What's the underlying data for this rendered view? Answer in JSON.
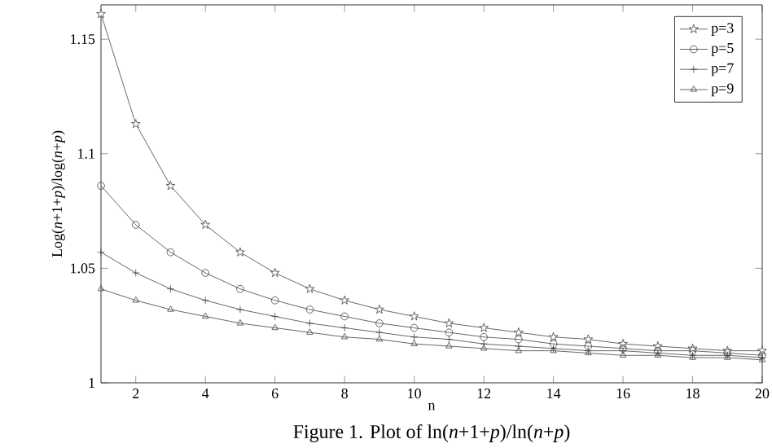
{
  "chart_data": {
    "type": "line",
    "xlabel": "n",
    "ylabel": "Log(*n*+1+*p*)/log(*n*+*p*)",
    "x": [
      1,
      2,
      3,
      4,
      5,
      6,
      7,
      8,
      9,
      10,
      11,
      12,
      13,
      14,
      15,
      16,
      17,
      18,
      19,
      20
    ],
    "series": [
      {
        "name": "p=3",
        "color": "#404040",
        "marker": "star",
        "values": [
          1.161,
          1.113,
          1.086,
          1.069,
          1.057,
          1.048,
          1.041,
          1.036,
          1.032,
          1.029,
          1.026,
          1.024,
          1.022,
          1.02,
          1.019,
          1.017,
          1.016,
          1.015,
          1.014,
          1.014
        ]
      },
      {
        "name": "p=5",
        "color": "#404040",
        "marker": "circle",
        "values": [
          1.086,
          1.069,
          1.057,
          1.048,
          1.041,
          1.036,
          1.032,
          1.029,
          1.026,
          1.024,
          1.022,
          1.02,
          1.019,
          1.017,
          1.016,
          1.015,
          1.014,
          1.014,
          1.013,
          1.012
        ]
      },
      {
        "name": "p=7",
        "color": "#404040",
        "marker": "cross",
        "values": [
          1.057,
          1.048,
          1.041,
          1.036,
          1.032,
          1.029,
          1.026,
          1.024,
          1.022,
          1.02,
          1.019,
          1.017,
          1.016,
          1.015,
          1.014,
          1.014,
          1.013,
          1.012,
          1.012,
          1.011
        ]
      },
      {
        "name": "p=9",
        "color": "#404040",
        "marker": "triangle",
        "values": [
          1.041,
          1.036,
          1.032,
          1.029,
          1.026,
          1.024,
          1.022,
          1.02,
          1.019,
          1.017,
          1.016,
          1.015,
          1.014,
          1.014,
          1.013,
          1.012,
          1.012,
          1.011,
          1.011,
          1.01
        ]
      }
    ],
    "xlim": [
      1,
      20
    ],
    "ylim": [
      1,
      1.165
    ],
    "xticks": [
      2,
      4,
      6,
      8,
      10,
      12,
      14,
      16,
      18,
      20
    ],
    "yticks": [
      1,
      1.05,
      1.1,
      1.15
    ],
    "grid": false,
    "legend": "top right",
    "line_style": "solid",
    "annotations": [
      "Figure 1. Plot of ln(*n*+1+*p*)/ln(*n*+*p*)"
    ]
  }
}
